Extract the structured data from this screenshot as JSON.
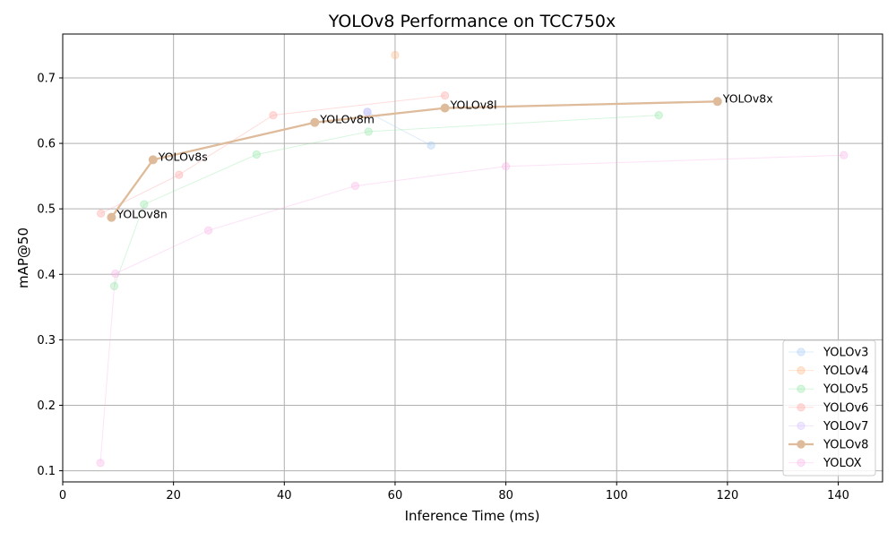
{
  "chart_data": {
    "type": "line",
    "title": "YOLOv8 Performance on TCC750x",
    "xlabel": "Inference Time (ms)",
    "ylabel": "mAP@50",
    "xlim": [
      0,
      148
    ],
    "ylim": [
      0.083,
      0.767
    ],
    "xticks": [
      0,
      20,
      40,
      60,
      80,
      100,
      120,
      140
    ],
    "yticks": [
      0.1,
      0.2,
      0.3,
      0.4,
      0.5,
      0.6,
      0.7
    ],
    "grid": true,
    "legend_position": "lower-right",
    "series": [
      {
        "name": "YOLOv3",
        "color": "#a1c9f4",
        "highlight": false,
        "points": [
          [
            55.0,
            0.648
          ],
          [
            66.5,
            0.597
          ]
        ]
      },
      {
        "name": "YOLOv4",
        "color": "#ffb482",
        "highlight": false,
        "points": [
          [
            60.0,
            0.735
          ]
        ]
      },
      {
        "name": "YOLOv5",
        "color": "#8de5a1",
        "highlight": false,
        "points": [
          [
            9.3,
            0.382
          ],
          [
            14.7,
            0.507
          ],
          [
            35.0,
            0.583
          ],
          [
            55.2,
            0.618
          ],
          [
            107.6,
            0.643
          ]
        ]
      },
      {
        "name": "YOLOv6",
        "color": "#ff9f9b",
        "highlight": false,
        "points": [
          [
            6.9,
            0.493
          ],
          [
            21.0,
            0.552
          ],
          [
            38.0,
            0.643
          ],
          [
            69.0,
            0.673
          ]
        ]
      },
      {
        "name": "YOLOv7",
        "color": "#d0bbff",
        "highlight": false,
        "points": [
          [
            55.0,
            0.648
          ]
        ]
      },
      {
        "name": "YOLOv8",
        "color": "#debb9b",
        "highlight": true,
        "points": [
          [
            8.8,
            0.487
          ],
          [
            16.3,
            0.575
          ],
          [
            45.5,
            0.632
          ],
          [
            69.0,
            0.654
          ],
          [
            118.2,
            0.664
          ]
        ],
        "labels": [
          "YOLOv8n",
          "YOLOv8s",
          "YOLOv8m",
          "YOLOv8l",
          "YOLOv8x"
        ]
      },
      {
        "name": "YOLOX",
        "color": "#fab0e4",
        "highlight": false,
        "points": [
          [
            6.8,
            0.112
          ],
          [
            9.5,
            0.401
          ],
          [
            26.3,
            0.467
          ],
          [
            52.8,
            0.535
          ],
          [
            80.0,
            0.565
          ],
          [
            141.0,
            0.582
          ]
        ]
      }
    ]
  }
}
